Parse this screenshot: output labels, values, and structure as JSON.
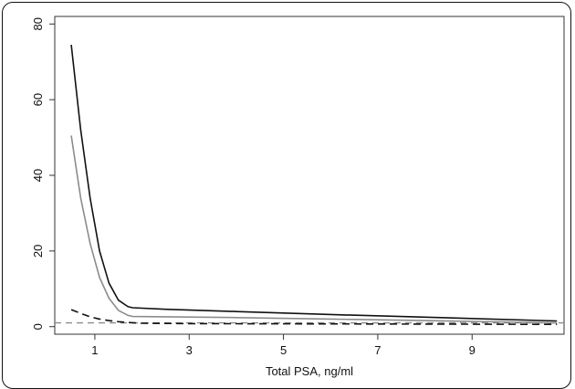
{
  "chart_data": {
    "type": "line",
    "xlabel": "Total PSA, ng/ml",
    "ylabel": "",
    "xlim": [
      0.15,
      10.95
    ],
    "ylim": [
      -2,
      82
    ],
    "x_ticks": [
      1,
      3,
      5,
      7,
      9
    ],
    "y_ticks": [
      0,
      20,
      40,
      60,
      80
    ],
    "x_tick_labels": [
      "1",
      "3",
      "5",
      "7",
      "9"
    ],
    "y_tick_labels": [
      "0",
      "20",
      "40",
      "60",
      "80"
    ],
    "grid": false,
    "legend": "none",
    "series": [
      {
        "color": "#111111",
        "dash": "solid",
        "x": [
          0.5,
          0.7,
          0.9,
          1.1,
          1.3,
          1.5,
          1.7,
          1.8,
          2.5,
          4,
          6,
          8,
          10.8
        ],
        "values": [
          74.5,
          52,
          34,
          20,
          11.5,
          7,
          5.3,
          5,
          4.6,
          4,
          3.2,
          2.5,
          1.5
        ]
      },
      {
        "color": "#8c8c8c",
        "dash": "solid",
        "x": [
          0.5,
          0.7,
          0.9,
          1.1,
          1.3,
          1.5,
          1.7,
          1.8,
          2.5,
          4,
          6,
          8,
          10.8
        ],
        "values": [
          50.5,
          34,
          22,
          13,
          7.5,
          4.3,
          3.0,
          2.7,
          2.6,
          2.4,
          2.0,
          1.6,
          1.0
        ]
      },
      {
        "color": "#111111",
        "dash": "dashed",
        "x": [
          0.5,
          0.7,
          0.9,
          1.1,
          1.3,
          1.5,
          1.7,
          2.0,
          3,
          5,
          7,
          9,
          10.8
        ],
        "values": [
          4.5,
          3.5,
          2.6,
          2.0,
          1.6,
          1.3,
          1.1,
          0.9,
          0.8,
          0.75,
          0.7,
          0.65,
          0.6
        ]
      }
    ],
    "reference_line": {
      "y": 1,
      "color": "#8c8c8c",
      "dash": "dashed"
    }
  }
}
